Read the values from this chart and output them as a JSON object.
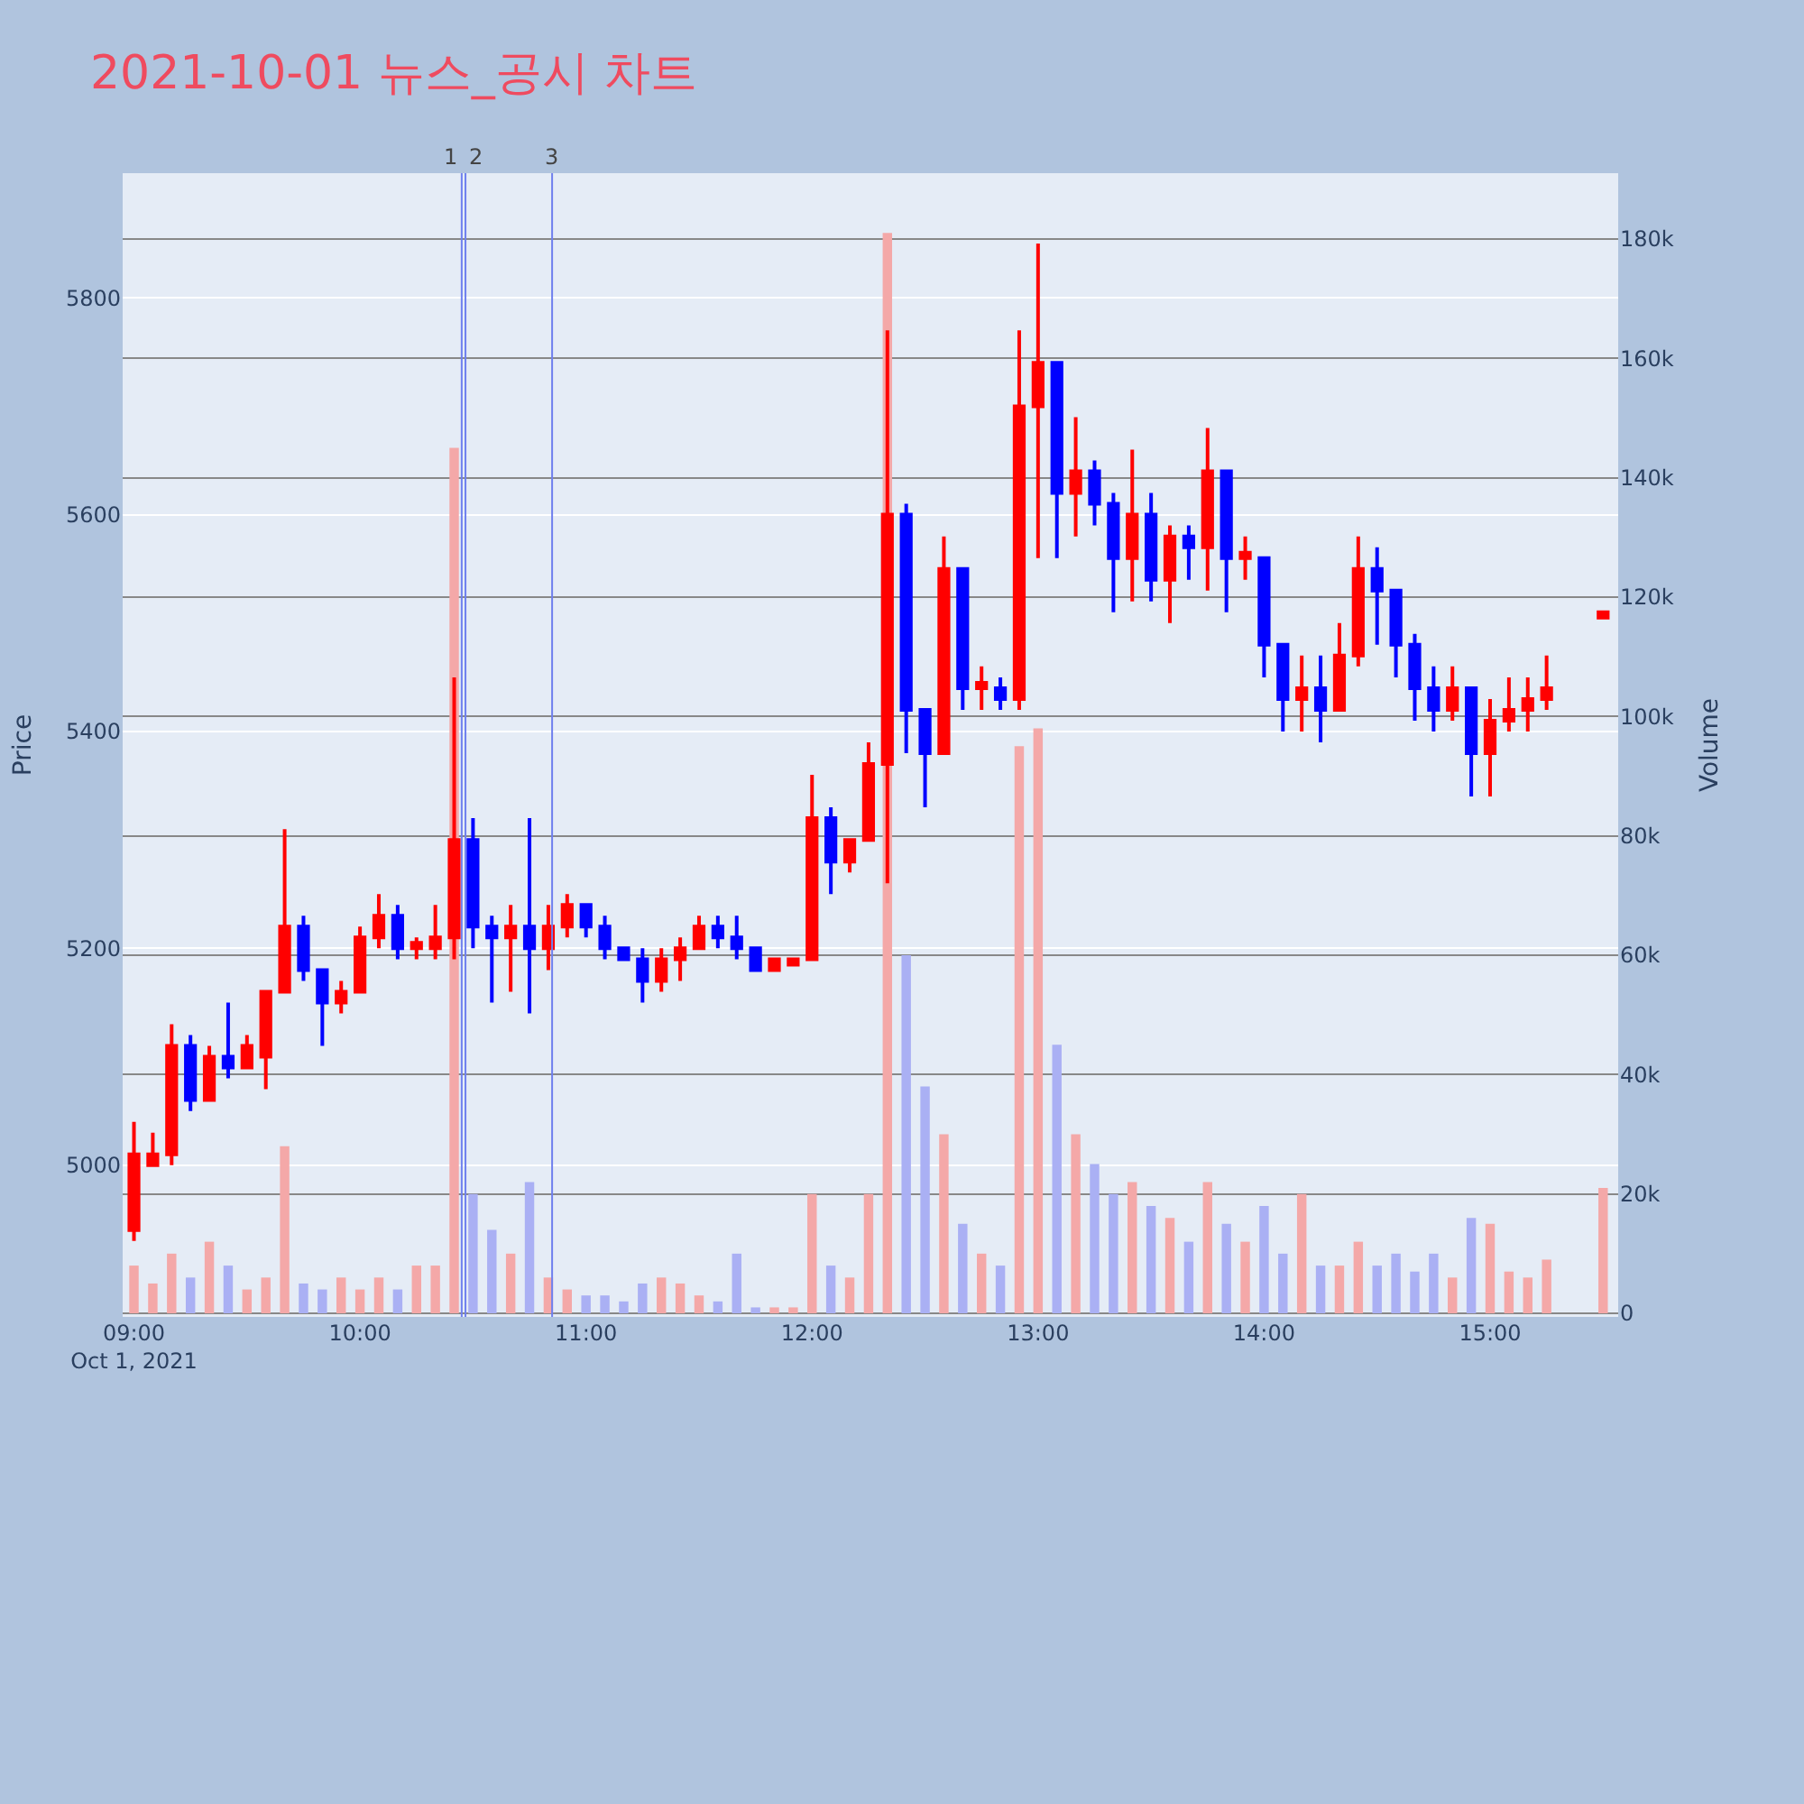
{
  "chart_data": {
    "type": "candlestick",
    "title": "2021-10-01 뉴스_공시 차트",
    "ylabel": "Price",
    "y2label": "Volume",
    "x": [
      "2021-10-01T09:00",
      "2021-10-01T09:05",
      "2021-10-01T09:10",
      "2021-10-01T09:15",
      "2021-10-01T09:20",
      "2021-10-01T09:25",
      "2021-10-01T09:30",
      "2021-10-01T09:35",
      "2021-10-01T09:40",
      "2021-10-01T09:45",
      "2021-10-01T09:50",
      "2021-10-01T09:55",
      "2021-10-01T10:00",
      "2021-10-01T10:05",
      "2021-10-01T10:10",
      "2021-10-01T10:15",
      "2021-10-01T10:20",
      "2021-10-01T10:25",
      "2021-10-01T10:30",
      "2021-10-01T10:35",
      "2021-10-01T10:40",
      "2021-10-01T10:45",
      "2021-10-01T10:50",
      "2021-10-01T10:55",
      "2021-10-01T11:00",
      "2021-10-01T11:05",
      "2021-10-01T11:10",
      "2021-10-01T11:15",
      "2021-10-01T11:20",
      "2021-10-01T11:25",
      "2021-10-01T11:30",
      "2021-10-01T11:35",
      "2021-10-01T11:40",
      "2021-10-01T11:45",
      "2021-10-01T11:50",
      "2021-10-01T11:55",
      "2021-10-01T12:00",
      "2021-10-01T12:05",
      "2021-10-01T12:10",
      "2021-10-01T12:15",
      "2021-10-01T12:20",
      "2021-10-01T12:25",
      "2021-10-01T12:30",
      "2021-10-01T12:35",
      "2021-10-01T12:40",
      "2021-10-01T12:45",
      "2021-10-01T12:50",
      "2021-10-01T12:55",
      "2021-10-01T13:00",
      "2021-10-01T13:05",
      "2021-10-01T13:10",
      "2021-10-01T13:15",
      "2021-10-01T13:20",
      "2021-10-01T13:25",
      "2021-10-01T13:30",
      "2021-10-01T13:35",
      "2021-10-01T13:40",
      "2021-10-01T13:45",
      "2021-10-01T13:50",
      "2021-10-01T13:55",
      "2021-10-01T14:00",
      "2021-10-01T14:05",
      "2021-10-01T14:10",
      "2021-10-01T14:15",
      "2021-10-01T14:20",
      "2021-10-01T14:25",
      "2021-10-01T14:30",
      "2021-10-01T14:35",
      "2021-10-01T14:40",
      "2021-10-01T14:45",
      "2021-10-01T14:50",
      "2021-10-01T14:55",
      "2021-10-01T15:00",
      "2021-10-01T15:05",
      "2021-10-01T15:10",
      "2021-10-01T15:15",
      "2021-10-01T15:30"
    ],
    "series": [
      {
        "type": "bar",
        "axis": "y2",
        "values": [
          8000,
          5000,
          10000,
          6000,
          12000,
          8000,
          4000,
          6000,
          28000,
          5000,
          4000,
          6000,
          4000,
          6000,
          4000,
          8000,
          8000,
          145000,
          20000,
          14000,
          10000,
          22000,
          6000,
          4000,
          3000,
          3000,
          2000,
          5000,
          6000,
          5000,
          3000,
          2000,
          10000,
          1000,
          1000,
          1000,
          20000,
          8000,
          6000,
          20000,
          181000,
          60000,
          38000,
          30000,
          15000,
          10000,
          8000,
          95000,
          98000,
          45000,
          30000,
          25000,
          20000,
          22000,
          18000,
          16000,
          12000,
          22000,
          15000,
          12000,
          18000,
          10000,
          20000,
          8000,
          8000,
          12000,
          8000,
          10000,
          7000,
          10000,
          6000,
          16000,
          15000,
          7000,
          6000,
          9000,
          21000
        ],
        "colors": [
          "#f4a8a8",
          "#f4a8a8",
          "#f4a8a8",
          "#aab0f4",
          "#f4a8a8",
          "#aab0f4",
          "#f4a8a8",
          "#f4a8a8",
          "#f4a8a8",
          "#aab0f4",
          "#aab0f4",
          "#f4a8a8",
          "#f4a8a8",
          "#f4a8a8",
          "#aab0f4",
          "#f4a8a8",
          "#f4a8a8",
          "#f4a8a8",
          "#aab0f4",
          "#aab0f4",
          "#f4a8a8",
          "#aab0f4",
          "#f4a8a8",
          "#f4a8a8",
          "#aab0f4",
          "#aab0f4",
          "#aab0f4",
          "#aab0f4",
          "#f4a8a8",
          "#f4a8a8",
          "#f4a8a8",
          "#aab0f4",
          "#aab0f4",
          "#aab0f4",
          "#f4a8a8",
          "#f4a8a8",
          "#f4a8a8",
          "#aab0f4",
          "#f4a8a8",
          "#f4a8a8",
          "#f4a8a8",
          "#aab0f4",
          "#aab0f4",
          "#f4a8a8",
          "#aab0f4",
          "#f4a8a8",
          "#aab0f4",
          "#f4a8a8",
          "#f4a8a8",
          "#aab0f4",
          "#f4a8a8",
          "#aab0f4",
          "#aab0f4",
          "#f4a8a8",
          "#aab0f4",
          "#f4a8a8",
          "#aab0f4",
          "#f4a8a8",
          "#aab0f4",
          "#f4a8a8",
          "#aab0f4",
          "#aab0f4",
          "#f4a8a8",
          "#aab0f4",
          "#f4a8a8",
          "#f4a8a8",
          "#aab0f4",
          "#aab0f4",
          "#aab0f4",
          "#aab0f4",
          "#f4a8a8",
          "#aab0f4",
          "#f4a8a8",
          "#f4a8a8",
          "#f4a8a8",
          "#f4a8a8",
          "#f4a8a8"
        ]
      },
      {
        "color": "#ff0000",
        "x": [
          "2021-10-01T09:00",
          "2021-10-01T09:05",
          "2021-10-01T09:10",
          "2021-10-01T09:20",
          "2021-10-01T09:30",
          "2021-10-01T09:35",
          "2021-10-01T09:40",
          "2021-10-01T09:55",
          "2021-10-01T10:00",
          "2021-10-01T10:05",
          "2021-10-01T10:15",
          "2021-10-01T10:20",
          "2021-10-01T10:25",
          "2021-10-01T10:40",
          "2021-10-01T10:50",
          "2021-10-01T10:55",
          "2021-10-01T11:20",
          "2021-10-01T11:25",
          "2021-10-01T11:30",
          "2021-10-01T11:50",
          "2021-10-01T11:55",
          "2021-10-01T12:00",
          "2021-10-01T12:10",
          "2021-10-01T12:15",
          "2021-10-01T12:20",
          "2021-10-01T12:35",
          "2021-10-01T12:45",
          "2021-10-01T12:55",
          "2021-10-01T13:00",
          "2021-10-01T13:10",
          "2021-10-01T13:25",
          "2021-10-01T13:35",
          "2021-10-01T13:45",
          "2021-10-01T13:55",
          "2021-10-01T14:10",
          "2021-10-01T14:20",
          "2021-10-01T14:25",
          "2021-10-01T14:50",
          "2021-10-01T15:00",
          "2021-10-01T15:05",
          "2021-10-01T15:10",
          "2021-10-01T15:15",
          "2021-10-01T15:30"
        ],
        "ohlc": [
          [
            4940,
            5040,
            4930,
            5010
          ],
          [
            5000,
            5030,
            5000,
            5010
          ],
          [
            5010,
            5130,
            5000,
            5110
          ],
          [
            5060,
            5110,
            5060,
            5100
          ],
          [
            5090,
            5120,
            5090,
            5110
          ],
          [
            5100,
            5160,
            5070,
            5160
          ],
          [
            5160,
            5310,
            5160,
            5220
          ],
          [
            5150,
            5170,
            5140,
            5160
          ],
          [
            5160,
            5220,
            5160,
            5210
          ],
          [
            5210,
            5250,
            5200,
            5230
          ],
          [
            5200,
            5210,
            5190,
            5205
          ],
          [
            5200,
            5240,
            5190,
            5210
          ],
          [
            5210,
            5450,
            5190,
            5300
          ],
          [
            5210,
            5240,
            5160,
            5220
          ],
          [
            5200,
            5240,
            5180,
            5220
          ],
          [
            5220,
            5250,
            5210,
            5240
          ],
          [
            5170,
            5200,
            5160,
            5190
          ],
          [
            5190,
            5210,
            5170,
            5200
          ],
          [
            5200,
            5230,
            5200,
            5220
          ],
          [
            5180,
            5190,
            5180,
            5190
          ],
          [
            5185,
            5190,
            5185,
            5190
          ],
          [
            5190,
            5360,
            5190,
            5320
          ],
          [
            5280,
            5300,
            5270,
            5300
          ],
          [
            5300,
            5390,
            5300,
            5370
          ],
          [
            5370,
            5770,
            5260,
            5600
          ],
          [
            5380,
            5580,
            5380,
            5550
          ],
          [
            5440,
            5460,
            5420,
            5445
          ],
          [
            5430,
            5770,
            5420,
            5700
          ],
          [
            5700,
            5850,
            5560,
            5740
          ],
          [
            5620,
            5690,
            5580,
            5640
          ],
          [
            5560,
            5660,
            5520,
            5600
          ],
          [
            5540,
            5590,
            5500,
            5580
          ],
          [
            5570,
            5680,
            5530,
            5640
          ],
          [
            5560,
            5580,
            5540,
            5565
          ],
          [
            5430,
            5470,
            5400,
            5440
          ],
          [
            5420,
            5500,
            5420,
            5470
          ],
          [
            5470,
            5580,
            5460,
            5550
          ],
          [
            5420,
            5460,
            5410,
            5440
          ],
          [
            5380,
            5430,
            5340,
            5410
          ],
          [
            5410,
            5450,
            5400,
            5420
          ],
          [
            5420,
            5450,
            5400,
            5430
          ],
          [
            5430,
            5470,
            5420,
            5440
          ],
          [
            5505,
            5510,
            5505,
            5510
          ]
        ]
      },
      {
        "color": "#0000ff",
        "x": [
          "2021-10-01T09:15",
          "2021-10-01T09:25",
          "2021-10-01T09:45",
          "2021-10-01T09:50",
          "2021-10-01T10:10",
          "2021-10-01T10:30",
          "2021-10-01T10:35",
          "2021-10-01T10:45",
          "2021-10-01T11:00",
          "2021-10-01T11:05",
          "2021-10-01T11:10",
          "2021-10-01T11:15",
          "2021-10-01T11:35",
          "2021-10-01T11:40",
          "2021-10-01T11:45",
          "2021-10-01T12:05",
          "2021-10-01T12:25",
          "2021-10-01T12:30",
          "2021-10-01T12:40",
          "2021-10-01T12:50",
          "2021-10-01T13:05",
          "2021-10-01T13:15",
          "2021-10-01T13:20",
          "2021-10-01T13:30",
          "2021-10-01T13:40",
          "2021-10-01T13:50",
          "2021-10-01T14:00",
          "2021-10-01T14:05",
          "2021-10-01T14:15",
          "2021-10-01T14:30",
          "2021-10-01T14:35",
          "2021-10-01T14:40",
          "2021-10-01T14:45",
          "2021-10-01T14:55"
        ],
        "ohlc": [
          [
            5110,
            5120,
            5050,
            5060
          ],
          [
            5100,
            5150,
            5080,
            5090
          ],
          [
            5220,
            5230,
            5170,
            5180
          ],
          [
            5180,
            5180,
            5110,
            5150
          ],
          [
            5230,
            5240,
            5190,
            5200
          ],
          [
            5300,
            5320,
            5200,
            5220
          ],
          [
            5220,
            5230,
            5150,
            5210
          ],
          [
            5220,
            5320,
            5140,
            5200
          ],
          [
            5240,
            5240,
            5210,
            5220
          ],
          [
            5220,
            5230,
            5190,
            5200
          ],
          [
            5200,
            5200,
            5190,
            5190
          ],
          [
            5190,
            5200,
            5150,
            5170
          ],
          [
            5220,
            5230,
            5200,
            5210
          ],
          [
            5210,
            5230,
            5190,
            5200
          ],
          [
            5200,
            5200,
            5180,
            5180
          ],
          [
            5320,
            5330,
            5250,
            5280
          ],
          [
            5600,
            5610,
            5380,
            5420
          ],
          [
            5420,
            5420,
            5330,
            5380
          ],
          [
            5550,
            5550,
            5420,
            5440
          ],
          [
            5440,
            5450,
            5420,
            5430
          ],
          [
            5740,
            5740,
            5560,
            5620
          ],
          [
            5640,
            5650,
            5590,
            5610
          ],
          [
            5610,
            5620,
            5510,
            5560
          ],
          [
            5600,
            5620,
            5520,
            5540
          ],
          [
            5580,
            5590,
            5540,
            5570
          ],
          [
            5640,
            5640,
            5510,
            5560
          ],
          [
            5560,
            5560,
            5450,
            5480
          ],
          [
            5480,
            5480,
            5400,
            5430
          ],
          [
            5440,
            5470,
            5390,
            5420
          ],
          [
            5550,
            5570,
            5480,
            5530
          ],
          [
            5530,
            5530,
            5450,
            5480
          ],
          [
            5480,
            5490,
            5410,
            5440
          ],
          [
            5440,
            5460,
            5400,
            5420
          ],
          [
            5440,
            5440,
            5340,
            5380
          ]
        ]
      }
    ],
    "ylim": [
      4860,
      5915
    ],
    "yticks": [
      5000,
      5200,
      5400,
      5600,
      5800
    ],
    "y2lim": [
      -600,
      191000
    ],
    "y2ticks": [
      {
        "value": 0,
        "label": "0"
      },
      {
        "value": 20000,
        "label": "20k"
      },
      {
        "value": 40000,
        "label": "40k"
      },
      {
        "value": 60000,
        "label": "60k"
      },
      {
        "value": 80000,
        "label": "80k"
      },
      {
        "value": 100000,
        "label": "100k"
      },
      {
        "value": 120000,
        "label": "120k"
      },
      {
        "value": 140000,
        "label": "140k"
      },
      {
        "value": 160000,
        "label": "160k"
      },
      {
        "value": 180000,
        "label": "180k"
      }
    ],
    "xlim": [
      "2021-10-01T08:57",
      "2021-10-01T15:34"
    ],
    "xticks": [
      {
        "value": "2021-10-01T09:00",
        "label": "09:00\nOct 1, 2021"
      },
      {
        "value": "2021-10-01T10:00",
        "label": "10:00"
      },
      {
        "value": "2021-10-01T11:00",
        "label": "11:00"
      },
      {
        "value": "2021-10-01T12:00",
        "label": "12:00"
      },
      {
        "value": "2021-10-01T13:00",
        "label": "13:00"
      },
      {
        "value": "2021-10-01T14:00",
        "label": "14:00"
      },
      {
        "value": "2021-10-01T15:00",
        "label": "15:00"
      }
    ],
    "ref_lines": [
      {
        "axis": "x",
        "value": "2021-10-01T10:27",
        "label": "1",
        "color": "#6f80ee"
      },
      {
        "axis": "x",
        "value": "2021-10-01T10:28",
        "label": "2",
        "color": "#6f80ee"
      },
      {
        "axis": "x",
        "value": "2021-10-01T10:51",
        "label": "3",
        "color": "#6f80ee"
      }
    ],
    "grid": "y"
  }
}
